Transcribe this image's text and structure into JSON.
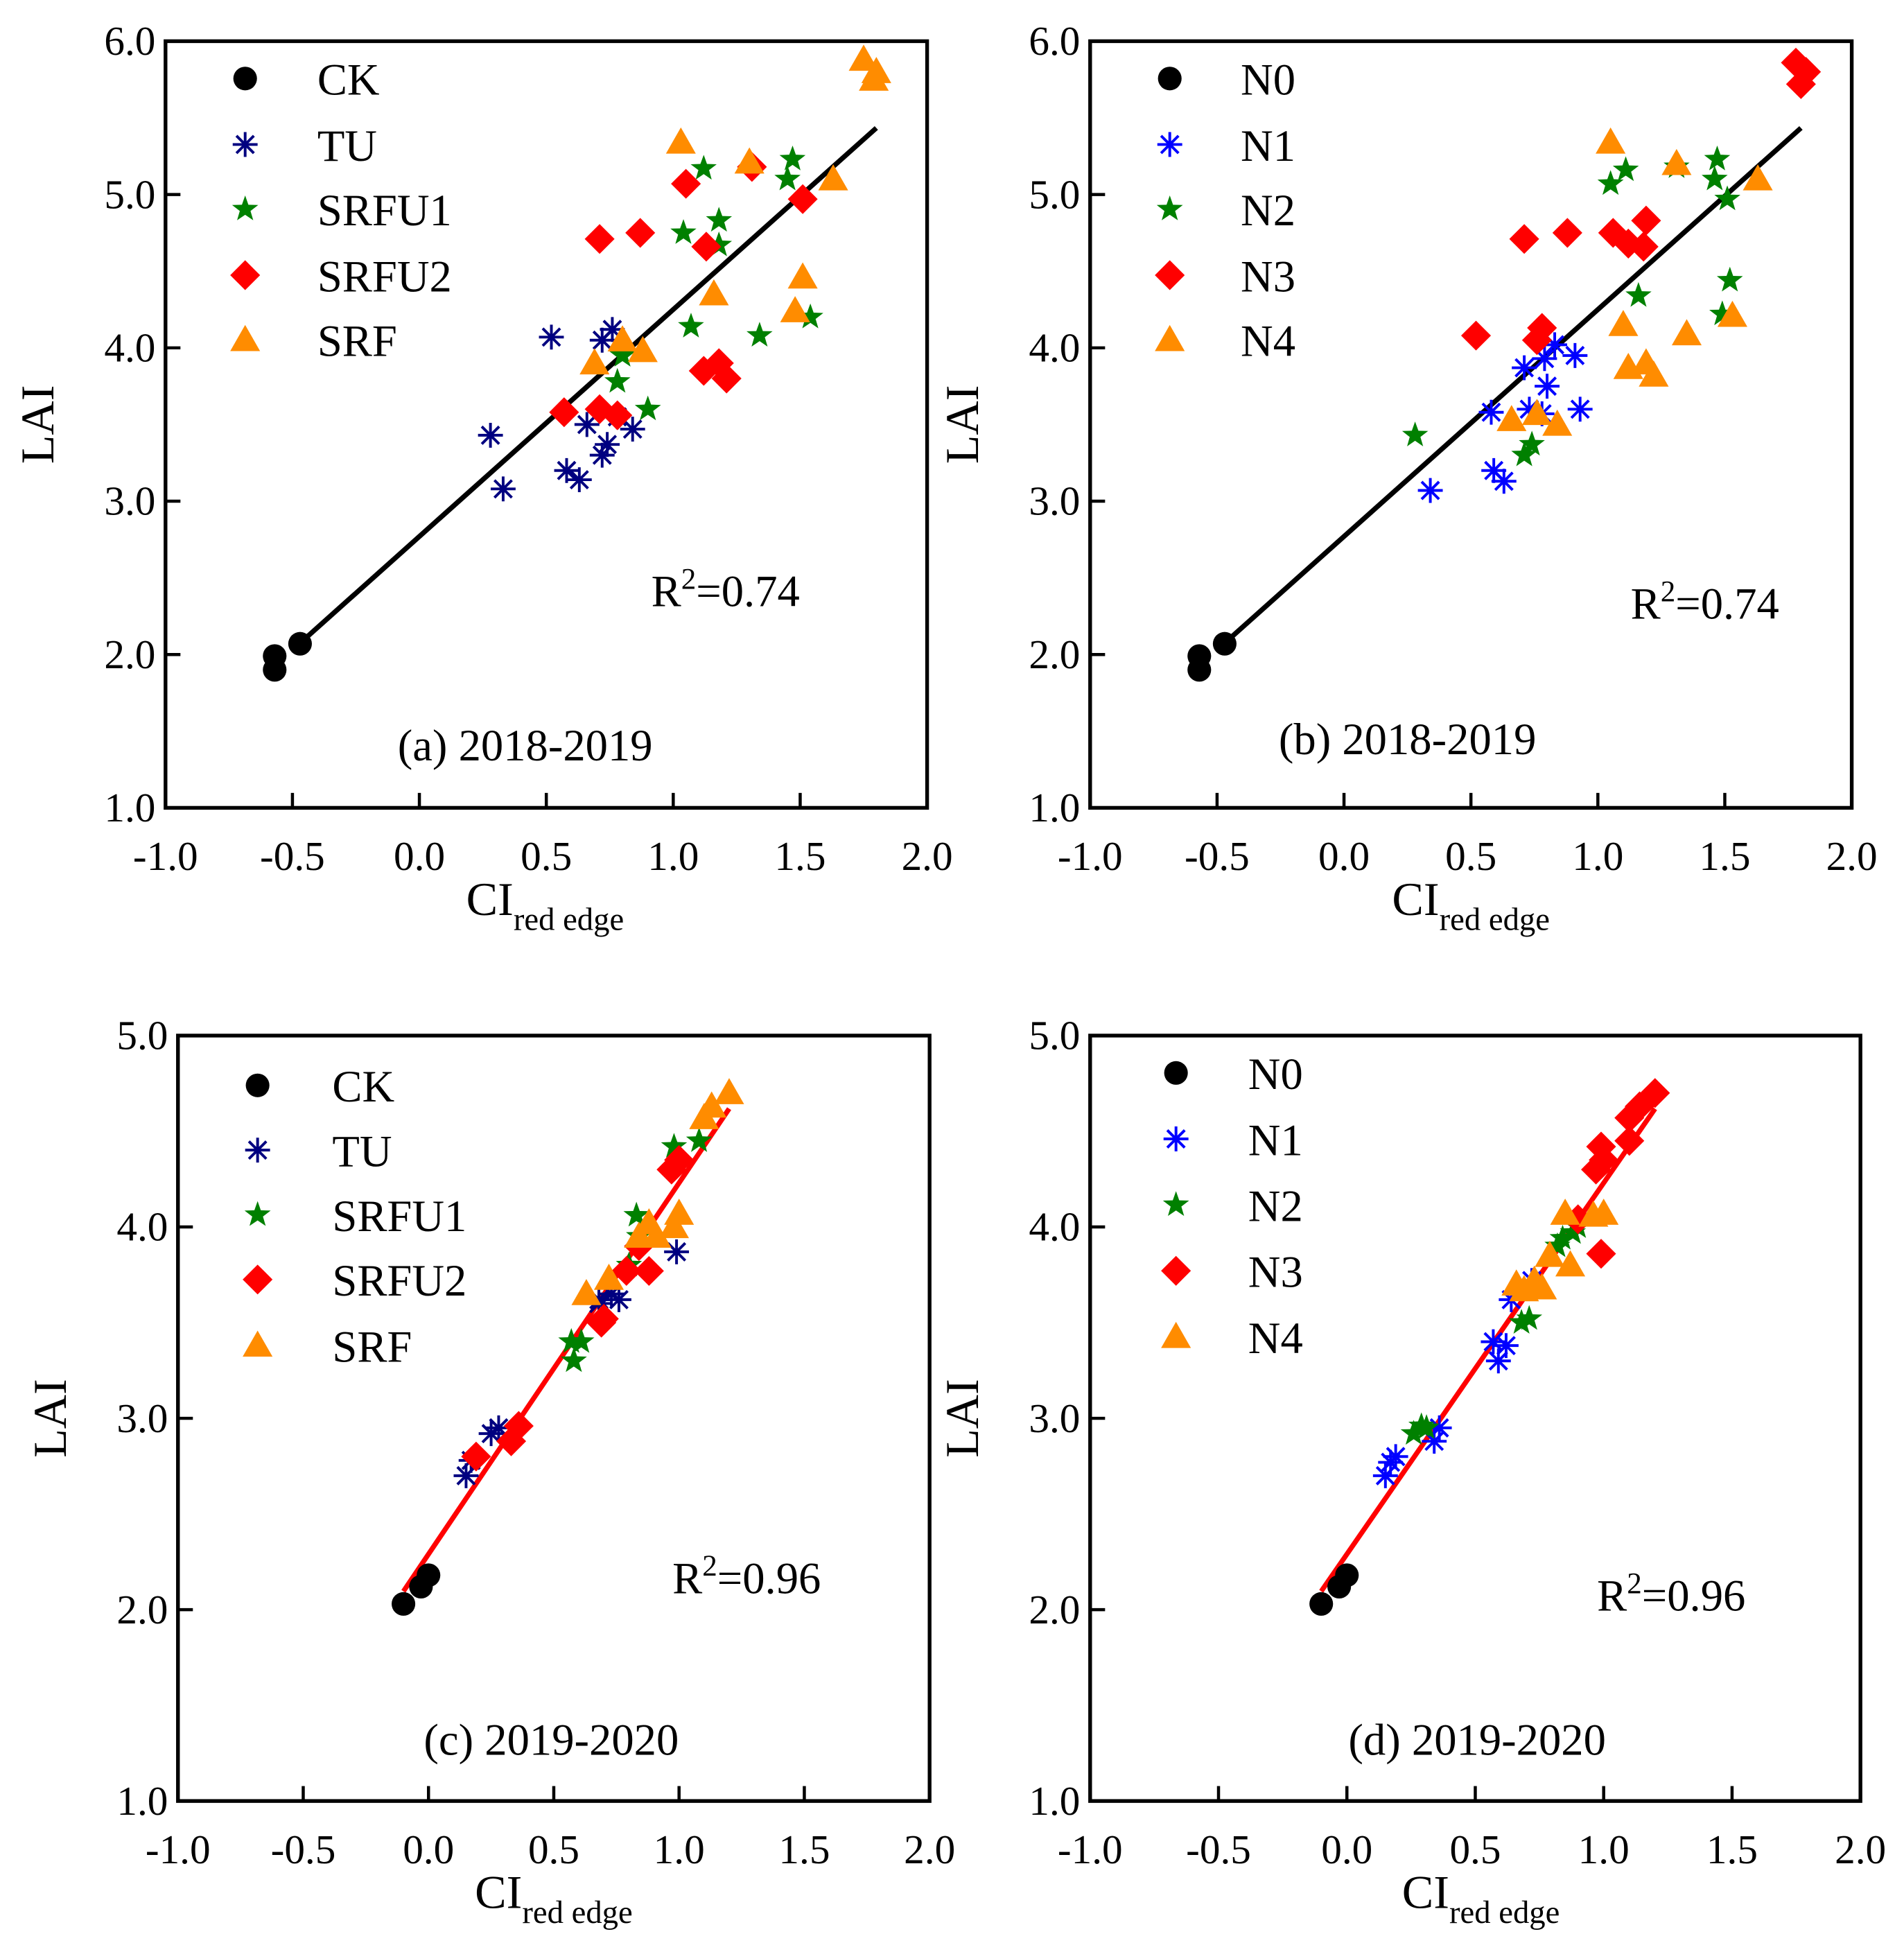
{
  "chart_data": [
    {
      "type": "scatter",
      "title": "(a) 2018-2019",
      "xlabel": "CI",
      "xlabel_sub": "red edge",
      "ylabel": "LAI",
      "xlim": [
        -1.0,
        2.0
      ],
      "ylim": [
        1.0,
        6.0
      ],
      "xticks": [
        -1.0,
        -0.5,
        0.0,
        0.5,
        1.0,
        1.5,
        2.0
      ],
      "xtick_labels": [
        "-1.0",
        "-0.5",
        "0.0",
        "0.5",
        "1.0",
        "1.5",
        "2.0"
      ],
      "yticks": [
        1,
        2,
        3,
        4,
        5,
        6
      ],
      "ytick_labels": [
        "1.0",
        "2.0",
        "3.0",
        "4.0",
        "5.0",
        "6.0"
      ],
      "legend_position": "top-left",
      "annotation": {
        "prefix": "R",
        "sup": "2",
        "value": "=0.74"
      },
      "fit": {
        "slope": 1.48,
        "intercept": 2.77,
        "x_range": [
          -0.47,
          1.8
        ],
        "color": "#000000"
      },
      "series": [
        {
          "name": "CK",
          "marker": "circle",
          "color": "#000000",
          "points": [
            [
              -0.57,
              1.9
            ],
            [
              -0.57,
              1.99
            ],
            [
              -0.47,
              2.07
            ]
          ]
        },
        {
          "name": "TU",
          "marker": "asterisk",
          "color": "#000080",
          "points": [
            [
              0.28,
              3.43
            ],
            [
              0.33,
              3.08
            ],
            [
              0.52,
              4.07
            ],
            [
              0.58,
              3.2
            ],
            [
              0.63,
              3.14
            ],
            [
              0.66,
              3.5
            ],
            [
              0.72,
              3.3
            ],
            [
              0.74,
              3.37
            ],
            [
              0.72,
              4.05
            ],
            [
              0.76,
              4.12
            ],
            [
              0.84,
              3.47
            ],
            [
              0.78,
              3.55
            ]
          ]
        },
        {
          "name": "SRFU1",
          "marker": "star",
          "color": "#008000",
          "points": [
            [
              1.12,
              5.17
            ],
            [
              1.47,
              5.23
            ],
            [
              1.45,
              5.1
            ],
            [
              1.04,
              4.75
            ],
            [
              1.18,
              4.83
            ],
            [
              1.18,
              4.67
            ],
            [
              1.07,
              4.14
            ],
            [
              1.34,
              4.08
            ],
            [
              1.54,
              4.2
            ],
            [
              0.78,
              3.78
            ],
            [
              0.9,
              3.6
            ],
            [
              0.8,
              3.95
            ]
          ]
        },
        {
          "name": "SRFU2",
          "marker": "diamond",
          "color": "#FF0000",
          "points": [
            [
              1.05,
              5.07
            ],
            [
              1.31,
              5.18
            ],
            [
              1.51,
              4.97
            ],
            [
              0.71,
              4.71
            ],
            [
              0.87,
              4.75
            ],
            [
              1.13,
              4.66
            ],
            [
              1.12,
              3.85
            ],
            [
              1.18,
              3.9
            ],
            [
              1.21,
              3.8
            ],
            [
              0.57,
              3.58
            ],
            [
              0.71,
              3.6
            ],
            [
              0.78,
              3.56
            ]
          ]
        },
        {
          "name": "SRF",
          "marker": "triangle",
          "color": "#FF8C00",
          "points": [
            [
              1.75,
              5.88
            ],
            [
              1.8,
              5.8
            ],
            [
              1.79,
              5.75
            ],
            [
              1.03,
              5.34
            ],
            [
              1.3,
              5.21
            ],
            [
              1.63,
              5.1
            ],
            [
              1.51,
              4.46
            ],
            [
              1.16,
              4.35
            ],
            [
              1.48,
              4.24
            ],
            [
              0.8,
              4.05
            ],
            [
              0.69,
              3.9
            ],
            [
              0.88,
              3.98
            ]
          ]
        }
      ]
    },
    {
      "type": "scatter",
      "title": "(b) 2018-2019",
      "xlabel": "CI",
      "xlabel_sub": "red edge",
      "ylabel": "LAI",
      "xlim": [
        -1.0,
        2.0
      ],
      "ylim": [
        1.0,
        6.0
      ],
      "xticks": [
        -1.0,
        -0.5,
        0.0,
        0.5,
        1.0,
        1.5,
        2.0
      ],
      "xtick_labels": [
        "-1.0",
        "-0.5",
        "0.0",
        "0.5",
        "1.0",
        "1.5",
        "2.0"
      ],
      "yticks": [
        1,
        2,
        3,
        4,
        5,
        6
      ],
      "ytick_labels": [
        "1.0",
        "2.0",
        "3.0",
        "4.0",
        "5.0",
        "6.0"
      ],
      "legend_position": "top-left",
      "annotation": {
        "prefix": "R",
        "sup": "2",
        "value": "=0.74"
      },
      "fit": {
        "slope": 1.48,
        "intercept": 2.77,
        "x_range": [
          -0.47,
          1.8
        ],
        "color": "#000000"
      },
      "series": [
        {
          "name": "N0",
          "marker": "circle",
          "color": "#000000",
          "points": [
            [
              -0.57,
              1.9
            ],
            [
              -0.57,
              1.99
            ],
            [
              -0.47,
              2.07
            ]
          ]
        },
        {
          "name": "N1",
          "marker": "asterisk",
          "color": "#0000FF",
          "points": [
            [
              0.34,
              3.07
            ],
            [
              0.58,
              3.58
            ],
            [
              0.59,
              3.2
            ],
            [
              0.63,
              3.13
            ],
            [
              0.71,
              3.87
            ],
            [
              0.73,
              3.6
            ],
            [
              0.79,
              3.93
            ],
            [
              0.8,
              3.75
            ],
            [
              0.83,
              4.02
            ],
            [
              0.91,
              3.95
            ],
            [
              0.93,
              3.6
            ],
            [
              0.78,
              3.57
            ]
          ]
        },
        {
          "name": "N2",
          "marker": "star",
          "color": "#008000",
          "points": [
            [
              0.28,
              3.43
            ],
            [
              0.71,
              3.3
            ],
            [
              0.74,
              3.37
            ],
            [
              1.05,
              5.07
            ],
            [
              1.11,
              5.16
            ],
            [
              1.47,
              5.23
            ],
            [
              1.46,
              5.1
            ],
            [
              1.51,
              4.97
            ],
            [
              1.52,
              4.44
            ],
            [
              1.16,
              4.34
            ],
            [
              1.49,
              4.22
            ],
            [
              1.31,
              5.18
            ]
          ]
        },
        {
          "name": "N3",
          "marker": "diamond",
          "color": "#FF0000",
          "points": [
            [
              1.78,
              5.86
            ],
            [
              1.8,
              5.72
            ],
            [
              1.82,
              5.8
            ],
            [
              0.71,
              4.71
            ],
            [
              0.88,
              4.75
            ],
            [
              1.06,
              4.75
            ],
            [
              1.12,
              4.68
            ],
            [
              1.18,
              4.66
            ],
            [
              1.19,
              4.83
            ],
            [
              0.52,
              4.08
            ],
            [
              0.76,
              4.05
            ],
            [
              0.78,
              4.13
            ]
          ]
        },
        {
          "name": "N4",
          "marker": "triangle",
          "color": "#FF8C00",
          "points": [
            [
              1.05,
              5.34
            ],
            [
              1.31,
              5.2
            ],
            [
              1.63,
              5.1
            ],
            [
              1.1,
              4.15
            ],
            [
              1.35,
              4.09
            ],
            [
              1.53,
              4.21
            ],
            [
              1.12,
              3.87
            ],
            [
              1.19,
              3.9
            ],
            [
              1.22,
              3.82
            ],
            [
              0.66,
              3.53
            ],
            [
              0.76,
              3.57
            ],
            [
              0.84,
              3.5
            ]
          ]
        }
      ]
    },
    {
      "type": "scatter",
      "title": "(c) 2019-2020",
      "xlabel": "CI",
      "xlabel_sub": "red edge",
      "ylabel": "LAI",
      "xlim": [
        -1.0,
        2.0
      ],
      "ylim": [
        1.0,
        5.0
      ],
      "xticks": [
        -1.0,
        -0.5,
        0.0,
        0.5,
        1.0,
        1.5,
        2.0
      ],
      "xtick_labels": [
        "-1.0",
        "-0.5",
        "0.0",
        "0.5",
        "1.0",
        "1.5",
        "2.0"
      ],
      "yticks": [
        1,
        2,
        3,
        4,
        5
      ],
      "ytick_labels": [
        "1.0",
        "2.0",
        "3.0",
        "4.0",
        "5.0"
      ],
      "legend_position": "top-left",
      "annotation": {
        "prefix": "R",
        "sup": "2",
        "value": "=0.96"
      },
      "fit": {
        "slope": 1.94,
        "intercept": 2.29,
        "x_range": [
          -0.1,
          1.2
        ],
        "color": "#FF0000"
      },
      "series": [
        {
          "name": "CK",
          "marker": "circle",
          "color": "#000000",
          "points": [
            [
              -0.1,
              2.03
            ],
            [
              -0.03,
              2.12
            ],
            [
              0.0,
              2.18
            ]
          ]
        },
        {
          "name": "TU",
          "marker": "asterisk",
          "color": "#000080",
          "points": [
            [
              0.15,
              2.7
            ],
            [
              0.17,
              2.78
            ],
            [
              0.25,
              2.92
            ],
            [
              0.28,
              2.95
            ],
            [
              0.68,
              3.62
            ],
            [
              0.73,
              3.65
            ],
            [
              0.76,
              3.62
            ],
            [
              0.99,
              3.87
            ],
            [
              0.68,
              3.6
            ]
          ]
        },
        {
          "name": "SRFU1",
          "marker": "star",
          "color": "#008000",
          "points": [
            [
              0.58,
              3.3
            ],
            [
              0.57,
              3.4
            ],
            [
              0.61,
              3.4
            ],
            [
              0.83,
              4.06
            ],
            [
              0.8,
              3.8
            ],
            [
              0.98,
              4.42
            ],
            [
              1.08,
              4.45
            ],
            [
              0.84,
              3.95
            ]
          ]
        },
        {
          "name": "SRFU2",
          "marker": "diamond",
          "color": "#FF0000",
          "points": [
            [
              0.19,
              2.8
            ],
            [
              0.33,
              2.88
            ],
            [
              0.36,
              2.96
            ],
            [
              0.69,
              3.5
            ],
            [
              0.7,
              3.52
            ],
            [
              0.79,
              3.77
            ],
            [
              0.88,
              3.77
            ],
            [
              0.97,
              4.3
            ],
            [
              1.0,
              4.35
            ],
            [
              0.84,
              3.9
            ]
          ]
        },
        {
          "name": "SRF",
          "marker": "triangle",
          "color": "#FF8C00",
          "points": [
            [
              1.2,
              4.7
            ],
            [
              1.13,
              4.63
            ],
            [
              1.1,
              4.57
            ],
            [
              0.63,
              3.65
            ],
            [
              0.72,
              3.73
            ],
            [
              0.84,
              3.95
            ],
            [
              0.91,
              3.95
            ],
            [
              1.0,
              4.07
            ],
            [
              0.98,
              4.0
            ],
            [
              0.88,
              4.02
            ]
          ]
        }
      ]
    },
    {
      "type": "scatter",
      "title": "(d) 2019-2020",
      "xlabel": "CI",
      "xlabel_sub": "red edge",
      "ylabel": "LAI",
      "xlim": [
        -1.0,
        2.0
      ],
      "ylim": [
        1.0,
        5.0
      ],
      "xticks": [
        -1.0,
        -0.5,
        0.0,
        0.5,
        1.0,
        1.5,
        2.0
      ],
      "xtick_labels": [
        "-1.0",
        "-0.5",
        "0.0",
        "0.5",
        "1.0",
        "1.5",
        "2.0"
      ],
      "yticks": [
        1,
        2,
        3,
        4,
        5
      ],
      "ytick_labels": [
        "1.0",
        "2.0",
        "3.0",
        "4.0",
        "5.0"
      ],
      "legend_position": "top-left",
      "annotation": {
        "prefix": "R",
        "sup": "2",
        "value": "=0.96"
      },
      "fit": {
        "slope": 1.94,
        "intercept": 2.29,
        "x_range": [
          -0.1,
          1.2
        ],
        "color": "#FF0000"
      },
      "series": [
        {
          "name": "N0",
          "marker": "circle",
          "color": "#000000",
          "points": [
            [
              -0.1,
              2.03
            ],
            [
              -0.03,
              2.12
            ],
            [
              0.0,
              2.18
            ]
          ]
        },
        {
          "name": "N1",
          "marker": "asterisk",
          "color": "#0000FF",
          "points": [
            [
              0.15,
              2.7
            ],
            [
              0.17,
              2.77
            ],
            [
              0.19,
              2.8
            ],
            [
              0.34,
              2.88
            ],
            [
              0.36,
              2.95
            ],
            [
              0.57,
              3.4
            ],
            [
              0.59,
              3.3
            ],
            [
              0.62,
              3.38
            ],
            [
              0.64,
              3.62
            ],
            [
              0.72,
              3.72
            ]
          ]
        },
        {
          "name": "N2",
          "marker": "star",
          "color": "#008000",
          "points": [
            [
              0.26,
              2.92
            ],
            [
              0.29,
              2.96
            ],
            [
              0.31,
              2.95
            ],
            [
              0.68,
              3.5
            ],
            [
              0.71,
              3.52
            ],
            [
              0.82,
              3.9
            ],
            [
              0.84,
              3.94
            ],
            [
              0.88,
              3.97
            ],
            [
              0.9,
              4.0
            ]
          ]
        },
        {
          "name": "N3",
          "marker": "diamond",
          "color": "#FF0000",
          "points": [
            [
              1.2,
              4.7
            ],
            [
              1.14,
              4.63
            ],
            [
              1.1,
              4.57
            ],
            [
              1.1,
              4.45
            ],
            [
              0.97,
              4.3
            ],
            [
              1.0,
              4.35
            ],
            [
              0.99,
              4.42
            ],
            [
              0.99,
              3.86
            ],
            [
              0.9,
              4.04
            ]
          ]
        },
        {
          "name": "N4",
          "marker": "triangle",
          "color": "#FF8C00",
          "points": [
            [
              0.85,
              4.07
            ],
            [
              0.96,
              4.06
            ],
            [
              1.0,
              4.07
            ],
            [
              0.87,
              3.8
            ],
            [
              0.79,
              3.85
            ],
            [
              0.73,
              3.72
            ],
            [
              0.69,
              3.67
            ],
            [
              0.76,
              3.68
            ],
            [
              0.66,
              3.7
            ]
          ]
        }
      ]
    }
  ]
}
